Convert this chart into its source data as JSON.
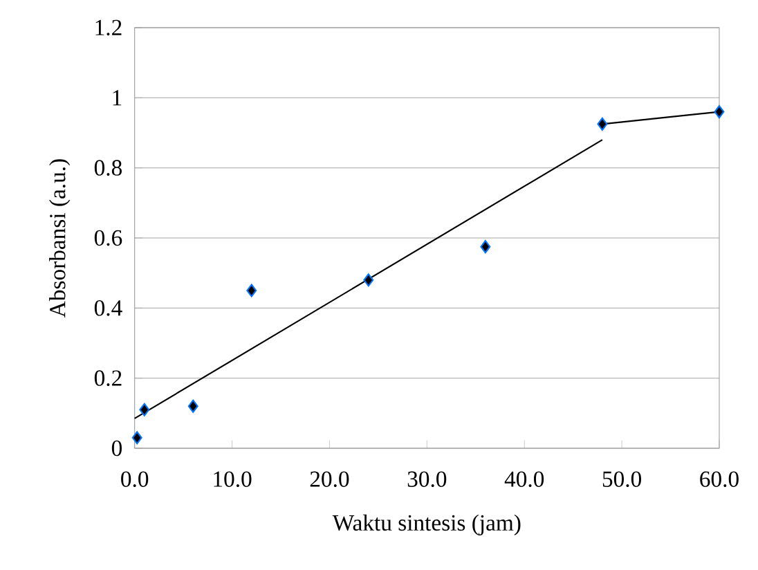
{
  "chart_data": {
    "type": "scatter",
    "xlabel": "Waktu sintesis (jam)",
    "ylabel": "Absorbansi (a.u.)",
    "xlim": [
      0,
      60
    ],
    "ylim": [
      0,
      1.2
    ],
    "xticks": [
      {
        "value": 0,
        "label": "0.0"
      },
      {
        "value": 10,
        "label": "10.0"
      },
      {
        "value": 20,
        "label": "20.0"
      },
      {
        "value": 30,
        "label": "30.0"
      },
      {
        "value": 40,
        "label": "40.0"
      },
      {
        "value": 50,
        "label": "50.0"
      },
      {
        "value": 60,
        "label": "60.0"
      }
    ],
    "yticks": [
      0,
      0.2,
      0.4,
      0.6,
      0.8,
      1,
      1.2
    ],
    "grid": "y",
    "marker": "diamond",
    "series": [
      {
        "color": "#000000",
        "x": [
          0.25,
          1,
          6,
          12,
          24,
          36,
          48,
          60
        ],
        "values": [
          0.03,
          0.11,
          0.12,
          0.45,
          0.48,
          0.575,
          0.925,
          0.96
        ]
      },
      {
        "type": "line",
        "color": "#000000",
        "marker": "none",
        "line_style": "solid",
        "x": [
          0,
          48
        ],
        "values": [
          0.085,
          0.88
        ]
      },
      {
        "type": "line",
        "color": "#000000",
        "marker": "none",
        "line_style": "solid",
        "x": [
          48,
          60
        ],
        "values": [
          0.925,
          0.96
        ]
      }
    ]
  }
}
